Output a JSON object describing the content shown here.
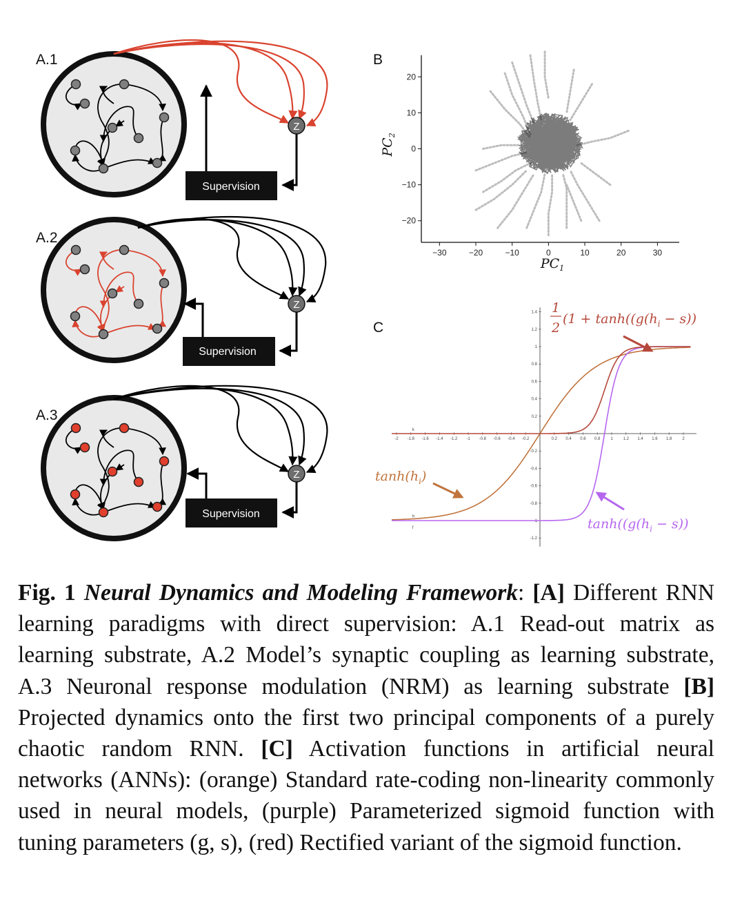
{
  "panels": {
    "a1": {
      "label": "A.1",
      "node_color": "#808080",
      "edge_color": "#000000",
      "readout_color": "#d9432f",
      "supervision": "Supervision",
      "z": "Z"
    },
    "a2": {
      "label": "A.2",
      "node_color": "#808080",
      "edge_color": "#d9432f",
      "readout_color": "#000000",
      "supervision": "Supervision",
      "z": "Z"
    },
    "a3": {
      "label": "A.3",
      "node_color": "#e0402d",
      "edge_color": "#000000",
      "readout_color": "#000000",
      "supervision": "Supervision",
      "z": "Z"
    },
    "b": {
      "label": "B"
    },
    "c": {
      "label": "C"
    }
  },
  "chart_data": [
    {
      "type": "scatter",
      "panel": "B",
      "xlabel_main": "PC",
      "xlabel_sub": "1",
      "ylabel_main": "PC",
      "ylabel_sub": "2",
      "xlim": [
        -35,
        36
      ],
      "ylim": [
        -26,
        26
      ],
      "xticks": [
        -30,
        -20,
        -10,
        0,
        10,
        20,
        30
      ],
      "yticks": [
        -20,
        -10,
        0,
        10,
        20
      ],
      "xtick_labels": [
        "−30",
        "−20",
        "−10",
        "0",
        "10",
        "20",
        "30"
      ],
      "ytick_labels": [
        "−20",
        "−10",
        "0",
        "10",
        "20"
      ],
      "core_color": "#111111",
      "trail_color": "#bdbdbd",
      "trails": [
        [
          [
            -10,
            24
          ],
          [
            -8,
            18
          ],
          [
            -6,
            12
          ],
          [
            -4,
            7
          ]
        ],
        [
          [
            -5,
            26
          ],
          [
            -4,
            19
          ],
          [
            -3,
            13
          ],
          [
            -2,
            8
          ]
        ],
        [
          [
            -1,
            27
          ],
          [
            -1,
            20
          ],
          [
            0,
            14
          ]
        ],
        [
          [
            -12,
            21
          ],
          [
            -10,
            15
          ],
          [
            -7,
            9
          ],
          [
            -5,
            4
          ]
        ],
        [
          [
            -16,
            16
          ],
          [
            -12,
            11
          ],
          [
            -8,
            7
          ],
          [
            -5,
            3
          ]
        ],
        [
          [
            -18,
            0
          ],
          [
            -13,
            1
          ],
          [
            -8,
            1
          ]
        ],
        [
          [
            -20,
            -6
          ],
          [
            -15,
            -4
          ],
          [
            -10,
            -2
          ],
          [
            -6,
            -1
          ]
        ],
        [
          [
            -18,
            -12
          ],
          [
            -13,
            -9
          ],
          [
            -9,
            -6
          ],
          [
            -5,
            -4
          ]
        ],
        [
          [
            -20,
            -17
          ],
          [
            -15,
            -14
          ],
          [
            -10,
            -10
          ],
          [
            -6,
            -6
          ]
        ],
        [
          [
            -14,
            -22
          ],
          [
            -10,
            -17
          ],
          [
            -7,
            -12
          ],
          [
            -4,
            -7
          ]
        ],
        [
          [
            -6,
            -22
          ],
          [
            -4,
            -17
          ],
          [
            -2,
            -12
          ],
          [
            -1,
            -7
          ]
        ],
        [
          [
            0,
            -24
          ],
          [
            0,
            -18
          ],
          [
            1,
            -12
          ],
          [
            1,
            -7
          ]
        ],
        [
          [
            5,
            -22
          ],
          [
            5,
            -16
          ],
          [
            5,
            -11
          ],
          [
            4,
            -7
          ]
        ],
        [
          [
            9,
            -20
          ],
          [
            7,
            -15
          ],
          [
            5,
            -10
          ]
        ],
        [
          [
            14,
            -20
          ],
          [
            11,
            -15
          ],
          [
            8,
            -10
          ],
          [
            6,
            -6
          ]
        ],
        [
          [
            17,
            -10
          ],
          [
            13,
            -7
          ],
          [
            9,
            -4
          ]
        ],
        [
          [
            22,
            5
          ],
          [
            17,
            3
          ],
          [
            12,
            2
          ],
          [
            8,
            1
          ]
        ],
        [
          [
            12,
            18
          ],
          [
            9,
            13
          ],
          [
            6,
            8
          ]
        ],
        [
          [
            7,
            22
          ],
          [
            6,
            16
          ],
          [
            5,
            10
          ]
        ]
      ],
      "core": {
        "cx": 0.5,
        "cy": 1.5,
        "rx": 9,
        "ry": 8.5
      }
    },
    {
      "type": "line",
      "panel": "C",
      "xlim": [
        -2.1,
        2.1
      ],
      "ylim": [
        -1.3,
        1.45
      ],
      "xticks": [
        -2,
        -1.8,
        -1.6,
        -1.4,
        -1.2,
        -1,
        -0.8,
        -0.6,
        -0.4,
        -0.2,
        0.2,
        0.4,
        0.6,
        0.8,
        1,
        1.2,
        1.4,
        1.6,
        1.8,
        2
      ],
      "xtick_labels": [
        "-2",
        "-1.8",
        "-1.6",
        "-1.4",
        "-1.2",
        "-1",
        "-0.8",
        "-0.6",
        "-0.4",
        "-0.2",
        "0.2",
        "0.4",
        "0.6",
        "0.8",
        "1",
        "1.2",
        "1.4",
        "1.6",
        "1.8",
        "2"
      ],
      "yticks": [
        1.4,
        1.2,
        1,
        0.8,
        0.6,
        0.4,
        0.2,
        -0.2,
        -0.4,
        -0.6,
        -0.8,
        -1,
        -1.2
      ],
      "ytick_labels": [
        "1.4",
        "1.2",
        "1",
        "0.8",
        "0.6",
        "0.4",
        "0.2",
        "-0.2",
        "-0.4",
        "-0.6",
        "-0.8",
        "-1",
        "-1.2"
      ],
      "series": [
        {
          "name": "tanh(h_i)",
          "color": "#c0743d",
          "curve": "tanh",
          "g": 1.3,
          "s": 0,
          "tag": "h"
        },
        {
          "name": "tanh((g(h_i − s))",
          "color": "#b566ef",
          "curve": "tanh",
          "g": 5,
          "s": 0.9,
          "tag": "f"
        },
        {
          "name": "1/2(1 + tanh((g(h_i − s))",
          "color": "#b5483b",
          "curve": "rect",
          "g": 5,
          "s": 0.9,
          "tag": "k"
        }
      ],
      "annotations": {
        "orange": {
          "text": "tanh(",
          "var": "h",
          "sub": "i",
          "end": ")",
          "color": "#c0743d"
        },
        "purple": {
          "text": "tanh((g(",
          "var": "h",
          "sub": "i",
          "end": " − s))",
          "color": "#b566ef"
        },
        "red": {
          "prefix": "(1 + tanh((g(",
          "var": "h",
          "sub": "i",
          "end": " − s))",
          "frac_num": "1",
          "frac_den": "2",
          "color": "#b5483b"
        }
      }
    }
  ],
  "caption": {
    "fig_label": "Fig.  1",
    "title": "Neural Dynamics and Modeling Framework",
    "t1": ":  ",
    "a": "[A]",
    "t2": " Different RNN learning paradigms with direct supervision: A.1 Read-out matrix as learning substrate, A.2 Model’s synaptic coupling as learning substrate, A.3 Neuronal response modulation (NRM) as learning substrate ",
    "b": "[B]",
    "t3": " Projected dynamics onto the first two principal components of a purely chaotic random RNN. ",
    "c": "[C]",
    "t4": " Activation functions in artificial neural networks (ANNs): (orange) Standard rate-coding non-linearity commonly used in neural models, (purple) Parameterized sigmoid function with tuning parameters (g, s), (red) Rectified variant of the sigmoid function."
  }
}
